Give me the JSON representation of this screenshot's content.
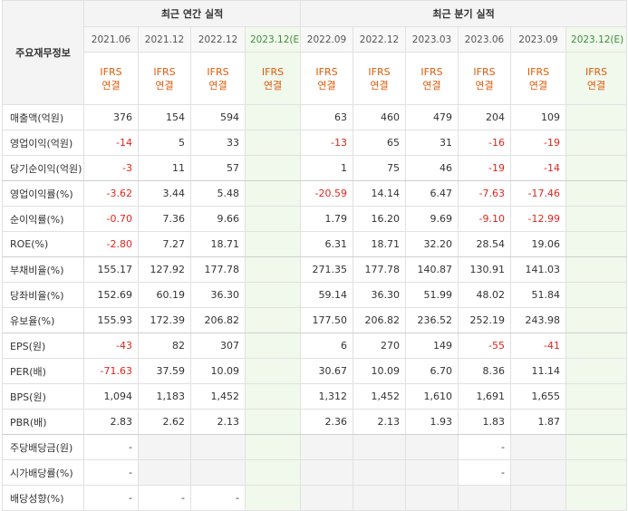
{
  "header": {
    "row_header": "주요재무정보",
    "annual_title": "최근 연간 실적",
    "quarter_title": "최근 분기 실적",
    "annual_periods": [
      "2021.06",
      "2021.12",
      "2022.12",
      "2023.12(E)"
    ],
    "quarter_periods": [
      "2022.09",
      "2022.12",
      "2023.03",
      "2023.06",
      "2023.09",
      "2023.12(E)"
    ],
    "basis_top": "IFRS",
    "basis_bottom": "연결"
  },
  "rows": [
    {
      "label": "매출액(억원)",
      "annual": [
        "376",
        "154",
        "594",
        ""
      ],
      "quarter": [
        "63",
        "460",
        "479",
        "204",
        "109",
        ""
      ]
    },
    {
      "label": "영업이익(억원)",
      "annual": [
        "-14",
        "5",
        "33",
        ""
      ],
      "quarter": [
        "-13",
        "65",
        "31",
        "-16",
        "-19",
        ""
      ]
    },
    {
      "label": "당기순이익(억원)",
      "annual": [
        "-3",
        "11",
        "57",
        ""
      ],
      "quarter": [
        "1",
        "75",
        "46",
        "-19",
        "-14",
        ""
      ]
    },
    {
      "label": "영업이익률(%)",
      "annual": [
        "-3.62",
        "3.44",
        "5.48",
        ""
      ],
      "quarter": [
        "-20.59",
        "14.14",
        "6.47",
        "-7.63",
        "-17.46",
        ""
      ]
    },
    {
      "label": "순이익률(%)",
      "annual": [
        "-0.70",
        "7.36",
        "9.66",
        ""
      ],
      "quarter": [
        "1.79",
        "16.20",
        "9.69",
        "-9.10",
        "-12.99",
        ""
      ]
    },
    {
      "label": "ROE(%)",
      "annual": [
        "-2.80",
        "7.27",
        "18.71",
        ""
      ],
      "quarter": [
        "6.31",
        "18.71",
        "32.20",
        "28.54",
        "19.06",
        ""
      ]
    },
    {
      "label": "부채비율(%)",
      "annual": [
        "155.17",
        "127.92",
        "177.78",
        ""
      ],
      "quarter": [
        "271.35",
        "177.78",
        "140.87",
        "130.91",
        "141.03",
        ""
      ]
    },
    {
      "label": "당좌비율(%)",
      "annual": [
        "152.69",
        "60.19",
        "36.30",
        ""
      ],
      "quarter": [
        "59.14",
        "36.30",
        "51.99",
        "48.02",
        "51.84",
        ""
      ]
    },
    {
      "label": "유보율(%)",
      "annual": [
        "155.93",
        "172.39",
        "206.82",
        ""
      ],
      "quarter": [
        "177.50",
        "206.82",
        "236.52",
        "252.19",
        "243.98",
        ""
      ]
    },
    {
      "label": "EPS(원)",
      "annual": [
        "-43",
        "82",
        "307",
        ""
      ],
      "quarter": [
        "6",
        "270",
        "149",
        "-55",
        "-41",
        ""
      ]
    },
    {
      "label": "PER(배)",
      "annual": [
        "-71.63",
        "37.59",
        "10.09",
        ""
      ],
      "quarter": [
        "30.67",
        "10.09",
        "6.70",
        "8.36",
        "11.14",
        ""
      ]
    },
    {
      "label": "BPS(원)",
      "annual": [
        "1,094",
        "1,183",
        "1,452",
        ""
      ],
      "quarter": [
        "1,312",
        "1,452",
        "1,610",
        "1,691",
        "1,655",
        ""
      ]
    },
    {
      "label": "PBR(배)",
      "annual": [
        "2.83",
        "2.62",
        "2.13",
        ""
      ],
      "quarter": [
        "2.36",
        "2.13",
        "1.93",
        "1.83",
        "1.87",
        ""
      ]
    },
    {
      "label": "주당배당금(원)",
      "annual": [
        "-",
        "",
        "",
        " "
      ],
      "quarter": [
        "",
        "",
        "",
        "-",
        "",
        ""
      ]
    },
    {
      "label": "시가배당률(%)",
      "annual": [
        "-",
        "",
        "",
        " "
      ],
      "quarter": [
        "",
        "",
        "",
        "-",
        "",
        ""
      ]
    },
    {
      "label": "배당성향(%)",
      "annual": [
        "-",
        "-",
        "-",
        ""
      ],
      "quarter": [
        "",
        "",
        "",
        "",
        "",
        ""
      ]
    }
  ]
}
